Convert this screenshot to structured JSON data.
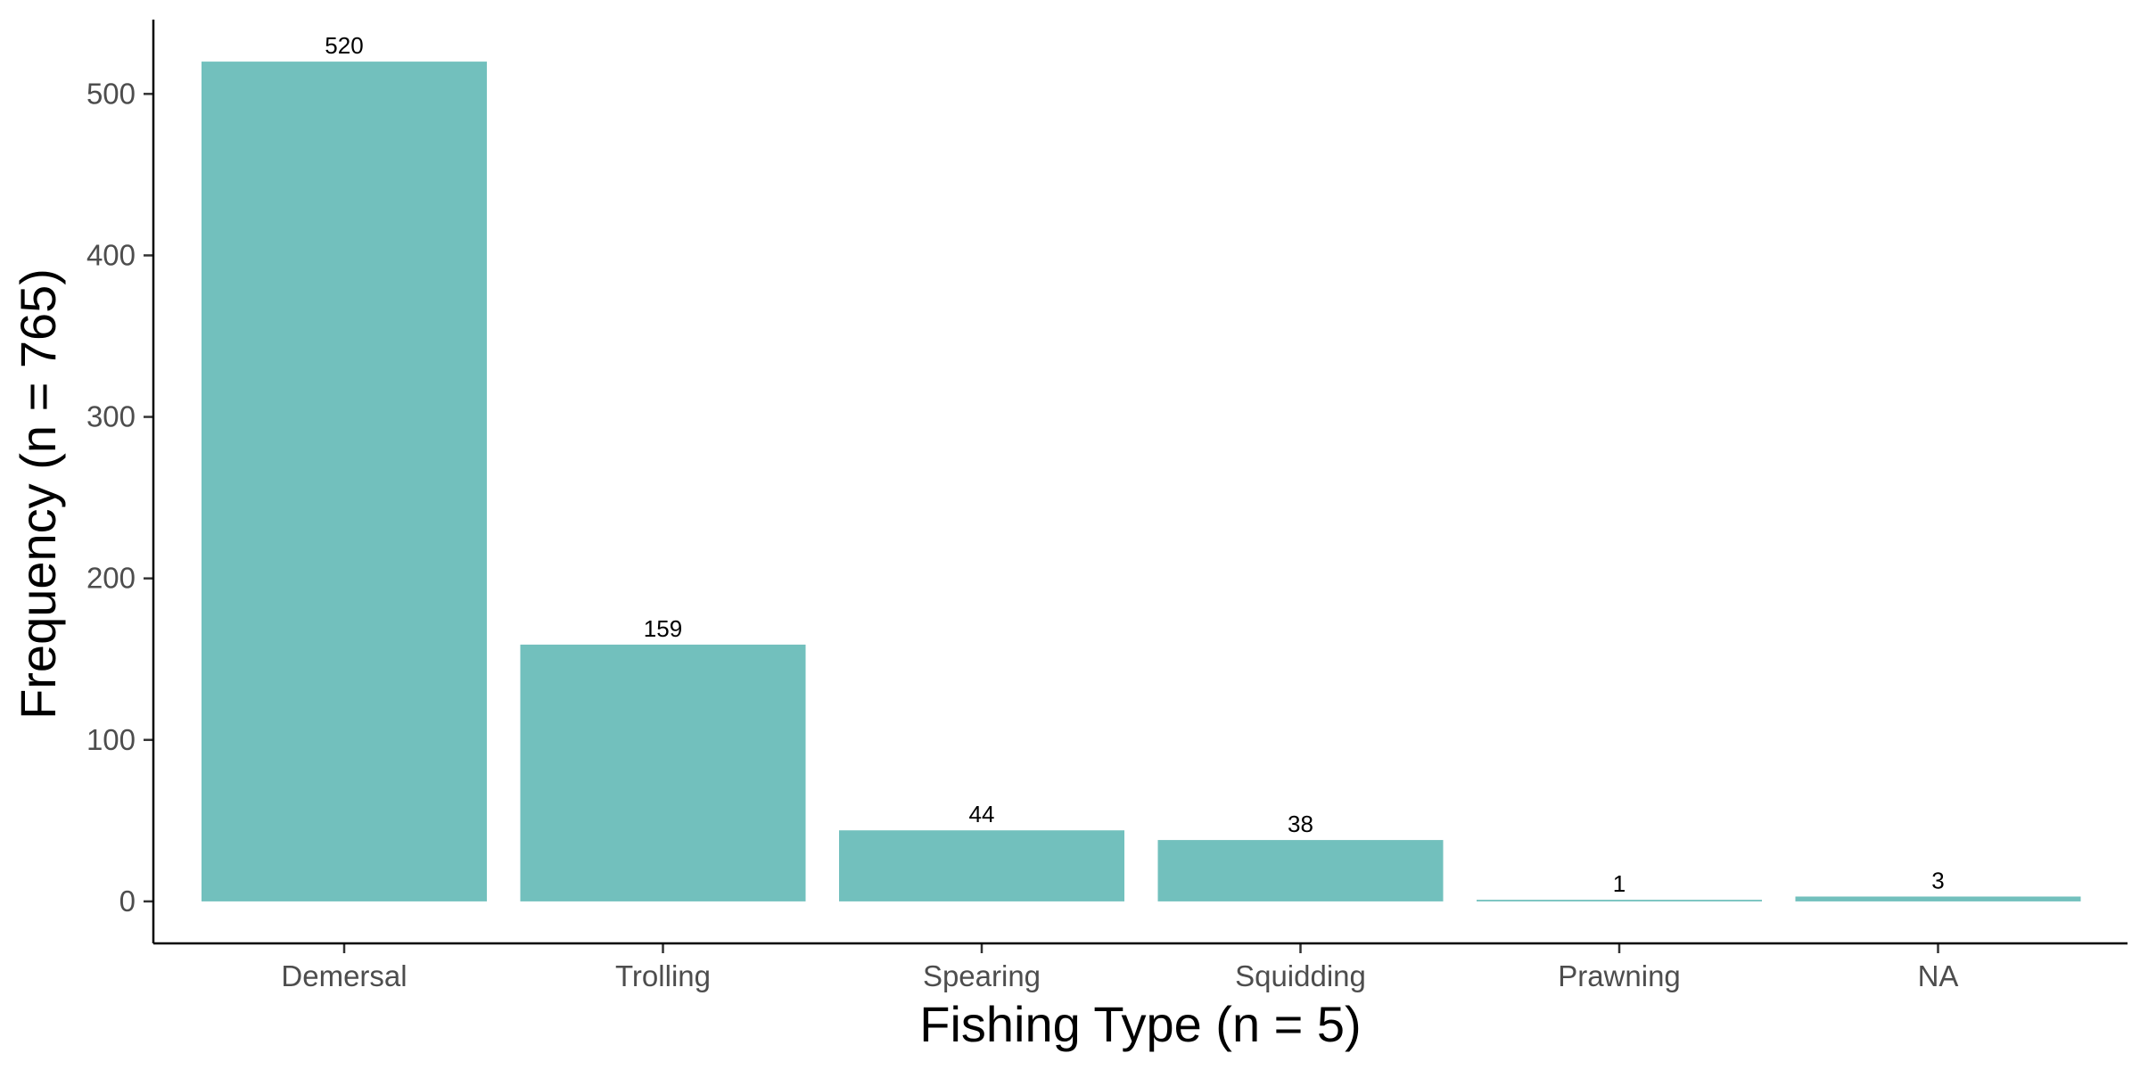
{
  "chart_data": {
    "type": "bar",
    "categories": [
      "Demersal",
      "Trolling",
      "Spearing",
      "Squidding",
      "Prawning",
      "NA"
    ],
    "values": [
      520,
      159,
      44,
      38,
      1,
      3
    ],
    "data_labels": [
      "520",
      "159",
      "44",
      "38",
      "1",
      "3"
    ],
    "xlabel": "Fishing Type (n = 5)",
    "ylabel": "Frequency (n = 765)",
    "yticks": [
      0,
      100,
      200,
      300,
      400,
      500
    ],
    "ytick_labels": [
      "0",
      "100",
      "200",
      "300",
      "400",
      "500"
    ],
    "ylim": [
      -26,
      546
    ],
    "grid": false,
    "legend": "none",
    "bar_color": "#72c0bd"
  }
}
